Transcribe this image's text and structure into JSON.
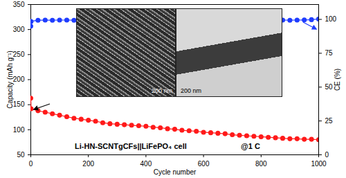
{
  "chart_data": {
    "type": "line",
    "xlabel": "Cycle number",
    "ylabel": "Capacity (mAh g⁻¹)",
    "y2label": "CE (%)",
    "x": [
      0,
      1,
      25,
      50,
      75,
      100,
      125,
      150,
      175,
      200,
      225,
      250,
      275,
      300,
      325,
      350,
      375,
      400,
      425,
      450,
      475,
      500,
      525,
      550,
      575,
      600,
      625,
      650,
      675,
      700,
      725,
      750,
      775,
      800,
      825,
      850,
      875,
      900,
      925,
      950,
      975,
      1000
    ],
    "series": [
      {
        "name": "Capacity",
        "color": "#ff1a1a",
        "marker": "circle",
        "values": [
          163,
          142,
          138,
          135,
          132,
          129,
          126,
          123,
          121,
          119,
          117,
          114,
          112,
          111,
          110,
          109,
          108,
          107,
          105,
          104,
          102,
          101,
          99,
          98,
          97,
          95,
          94,
          93,
          92,
          90,
          89,
          88,
          87,
          86,
          85,
          84,
          83,
          82,
          82,
          81,
          81,
          80
        ]
      },
      {
        "name": "CE",
        "color": "#1f3dff",
        "marker": "circle",
        "axis": "y2",
        "values": [
          95,
          98.5,
          99.4,
          99.5,
          99.4,
          99.5,
          99.5,
          99.4,
          99.5,
          99.5,
          99.4,
          99.5,
          99.5,
          99.4,
          99.5,
          99.5,
          99.4,
          99.5,
          99.5,
          99.4,
          99.5,
          99.5,
          99.4,
          99.5,
          99.5,
          99.4,
          99.5,
          99.5,
          99.4,
          99.5,
          99.5,
          99.4,
          99.5,
          99.5,
          99.4,
          99.5,
          99.5,
          99.4,
          99.5,
          99.6,
          99.8,
          100.3
        ]
      }
    ],
    "xlim": [
      0,
      1000
    ],
    "xticks": [
      0,
      200,
      400,
      600,
      800,
      1000
    ],
    "ylim": [
      50,
      350
    ],
    "yticks": [
      50,
      100,
      150,
      200,
      250,
      300,
      350
    ],
    "y2lim": [
      0,
      111
    ],
    "y2ticks": [
      0,
      25,
      50,
      75,
      100
    ],
    "annotations": [
      "Li-HN-SCNTgCFs||LiFePO₄ cell",
      "@1 C",
      "200 nm",
      "200 nm"
    ]
  }
}
